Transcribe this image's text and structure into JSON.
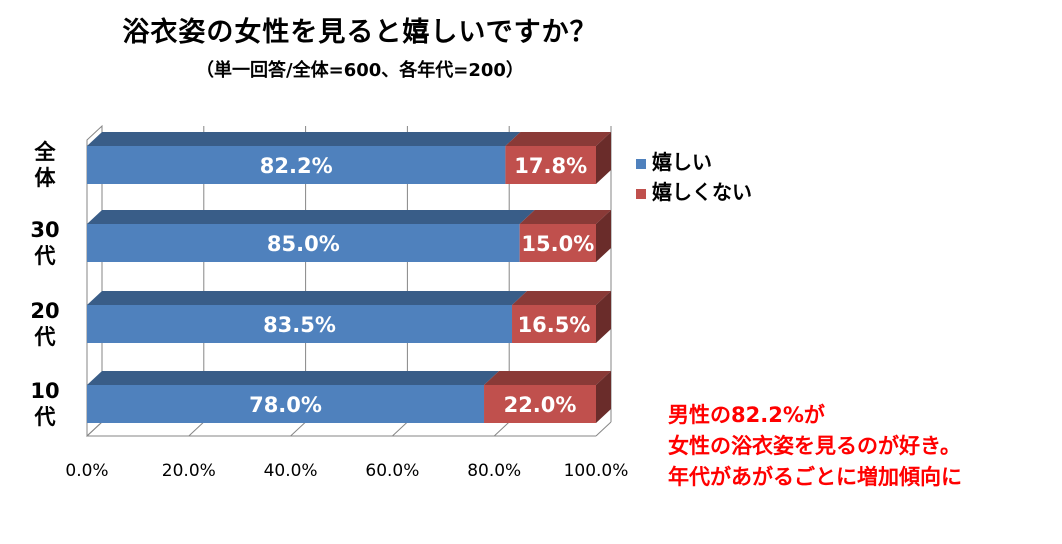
{
  "title": "浴衣姿の女性を見ると嬉しいですか？",
  "subtitle": "（単一回答/全体=600、各年代=200）",
  "note_lines": [
    "男性の82.2%が",
    "女性の浴衣姿を見るのが好き。",
    "年代があがるごとに増加傾向に"
  ],
  "chart_data": {
    "type": "bar",
    "orientation": "horizontal",
    "stacked": true,
    "percent_stacked": true,
    "style": "3d",
    "title": "浴衣姿の女性を見ると嬉しいですか？",
    "subtitle": "（単一回答/全体=600、各年代=200）",
    "categories": [
      "全体",
      "30代",
      "20代",
      "10代"
    ],
    "series": [
      {
        "name": "嬉しい",
        "values": [
          82.2,
          85.0,
          83.5,
          78.0
        ],
        "color": "#4f81bd",
        "labels": [
          "82.2%",
          "85.0%",
          "83.5%",
          "78.0%"
        ]
      },
      {
        "name": "嬉しくない",
        "values": [
          17.8,
          15.0,
          16.5,
          22.0
        ],
        "color": "#c0504d",
        "labels": [
          "17.8%",
          "15.0%",
          "16.5%",
          "22.0%"
        ]
      }
    ],
    "xlim": [
      0,
      100
    ],
    "x_ticks": [
      "0.0%",
      "20.0%",
      "40.0%",
      "60.0%",
      "80.0%",
      "100.0%"
    ],
    "grid": true,
    "legend": "right"
  },
  "colors": {
    "accent_note": "#ff0000"
  }
}
